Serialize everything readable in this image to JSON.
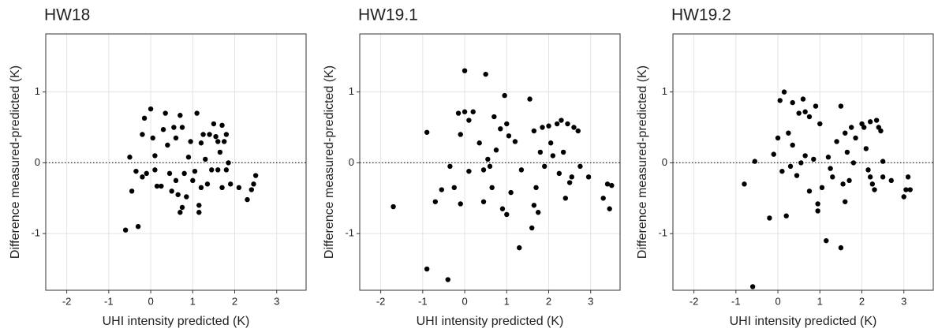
{
  "chart_data": [
    {
      "type": "scatter",
      "title": "HW18",
      "x_label": "UHI intensity predicted (K)",
      "y_label": "Difference measured-predicted (K)",
      "color": "#000000",
      "grid": true,
      "reference_line": 0,
      "xlim": [
        -2.5,
        3.7
      ],
      "ylim": [
        -1.8,
        1.82
      ],
      "xticks": [
        -2,
        -1,
        0,
        1,
        2,
        3
      ],
      "yticks": [
        -1,
        0,
        1
      ],
      "x": [
        -0.6,
        -0.3,
        -0.5,
        -0.45,
        -0.35,
        -0.2,
        -0.15,
        -0.2,
        0,
        -0.1,
        0.05,
        0.1,
        0.1,
        0.15,
        0.25,
        0.3,
        0.35,
        0.4,
        0.45,
        0.5,
        0.55,
        0.6,
        0.6,
        0.65,
        0.7,
        0.7,
        0.75,
        0.75,
        0.8,
        0.85,
        0.9,
        0.95,
        1.0,
        1.05,
        1.1,
        1.15,
        1.15,
        1.2,
        1.2,
        1.25,
        1.3,
        1.35,
        1.4,
        1.45,
        1.5,
        1.55,
        1.6,
        1.6,
        1.65,
        1.7,
        1.7,
        1.75,
        1.8,
        1.8,
        1.85,
        1.9,
        2.1,
        2.3,
        2.4,
        2.45,
        2.5
      ],
      "y": [
        -0.95,
        -0.9,
        0.08,
        -0.4,
        -0.12,
        0.4,
        0.63,
        -0.2,
        0.76,
        -0.15,
        0.35,
        0.1,
        -0.1,
        -0.33,
        -0.33,
        0.47,
        0.7,
        0.25,
        -0.15,
        -0.4,
        0.5,
        0.35,
        -0.25,
        -0.45,
        0.67,
        -0.7,
        0.5,
        -0.63,
        -0.15,
        -0.48,
        0.08,
        0.3,
        -0.25,
        -0.12,
        0.7,
        -0.6,
        -0.7,
        0.28,
        -0.35,
        0.4,
        0.05,
        -0.3,
        0.4,
        -0.1,
        0.55,
        0.37,
        0.3,
        -0.1,
        0.15,
        0.53,
        -0.35,
        0.3,
        0.4,
        -0.1,
        0.0,
        -0.3,
        -0.35,
        -0.52,
        -0.38,
        -0.3,
        -0.18
      ]
    },
    {
      "type": "scatter",
      "title": "HW19.1",
      "x_label": "UHI intensity predicted (K)",
      "y_label": "Difference measured-predicted (K)",
      "color": "#000000",
      "grid": true,
      "reference_line": 0,
      "xlim": [
        -2.5,
        3.7
      ],
      "ylim": [
        -1.8,
        1.82
      ],
      "xticks": [
        -2,
        -1,
        0,
        1,
        2,
        3
      ],
      "yticks": [
        -1,
        0,
        1
      ],
      "x": [
        -1.7,
        -0.9,
        -0.9,
        -0.7,
        -0.55,
        -0.4,
        -0.35,
        -0.25,
        -0.15,
        -0.1,
        -0.1,
        0,
        0,
        0.1,
        0.1,
        0.2,
        0.35,
        0.45,
        0.45,
        0.5,
        0.55,
        0.6,
        0.65,
        0.7,
        0.75,
        0.85,
        0.9,
        0.95,
        1.0,
        1.0,
        1.05,
        1.1,
        1.2,
        1.3,
        1.35,
        1.55,
        1.6,
        1.65,
        1.65,
        1.7,
        1.75,
        1.8,
        1.85,
        1.9,
        2.0,
        2.05,
        2.1,
        2.2,
        2.25,
        2.3,
        2.35,
        2.4,
        2.45,
        2.5,
        2.55,
        2.6,
        2.7,
        2.75,
        2.95,
        3.3,
        3.4,
        3.45,
        3.5
      ],
      "y": [
        -0.62,
        -1.5,
        0.43,
        -0.55,
        -0.38,
        -1.65,
        -0.05,
        -0.35,
        0.7,
        -0.58,
        0.4,
        0.72,
        1.3,
        0.6,
        -0.12,
        0.72,
        0.28,
        -0.55,
        -0.1,
        1.25,
        0.05,
        -0.05,
        -0.35,
        0.65,
        0.18,
        0.48,
        -0.65,
        0.95,
        -0.73,
        0.55,
        0.38,
        -0.42,
        0.3,
        -1.2,
        -0.1,
        0.9,
        -0.92,
        -0.6,
        0.45,
        -0.35,
        -0.7,
        0.15,
        0.5,
        -0.05,
        0.52,
        0.28,
        0.1,
        0.55,
        -0.15,
        0.6,
        0.15,
        -0.5,
        0.55,
        -0.28,
        -0.2,
        0.5,
        0.45,
        -0.05,
        -0.2,
        -0.5,
        -0.3,
        -0.65,
        -0.32
      ]
    },
    {
      "type": "scatter",
      "title": "HW19.2",
      "x_label": "UHI intensity predicted (K)",
      "y_label": "Difference measured-predicted (K)",
      "color": "#000000",
      "grid": true,
      "reference_line": 0,
      "xlim": [
        -2.5,
        3.7
      ],
      "ylim": [
        -1.8,
        1.82
      ],
      "xticks": [
        -2,
        -1,
        0,
        1,
        2,
        3
      ],
      "yticks": [
        -1,
        0,
        1
      ],
      "x": [
        -0.8,
        -0.6,
        -0.55,
        -0.2,
        -0.1,
        0,
        0.05,
        0.1,
        0.15,
        0.2,
        0.25,
        0.3,
        0.35,
        0.35,
        0.45,
        0.5,
        0.55,
        0.6,
        0.65,
        0.65,
        0.75,
        0.75,
        0.85,
        0.9,
        0.95,
        0.95,
        1.0,
        1.05,
        1.15,
        1.2,
        1.25,
        1.3,
        1.4,
        1.5,
        1.5,
        1.55,
        1.6,
        1.6,
        1.65,
        1.7,
        1.75,
        1.8,
        1.85,
        2.0,
        2.05,
        2.1,
        2.15,
        2.2,
        2.2,
        2.25,
        2.3,
        2.35,
        2.4,
        2.45,
        2.5,
        2.5,
        2.7,
        3.0,
        3.05,
        3.15,
        3.1
      ],
      "y": [
        -0.3,
        -1.75,
        0.02,
        -0.78,
        0.12,
        0.35,
        0.88,
        -0.12,
        1.0,
        -0.75,
        0.42,
        -0.05,
        0.25,
        0.85,
        -0.18,
        0.7,
        0.0,
        0.9,
        0.72,
        0.1,
        0.65,
        -0.4,
        0.05,
        0.8,
        -0.58,
        -0.68,
        0.55,
        -0.35,
        -1.1,
        0.08,
        -0.08,
        -0.2,
        0.3,
        0.8,
        -1.2,
        -0.3,
        0.42,
        -0.55,
        0.15,
        -0.25,
        0.5,
        0.0,
        0.35,
        0.55,
        0.5,
        0.2,
        -0.1,
        -0.2,
        0.58,
        -0.3,
        -0.38,
        0.6,
        0.5,
        0.45,
        0.02,
        -0.2,
        -0.25,
        -0.48,
        -0.38,
        -0.38,
        -0.2
      ]
    }
  ]
}
